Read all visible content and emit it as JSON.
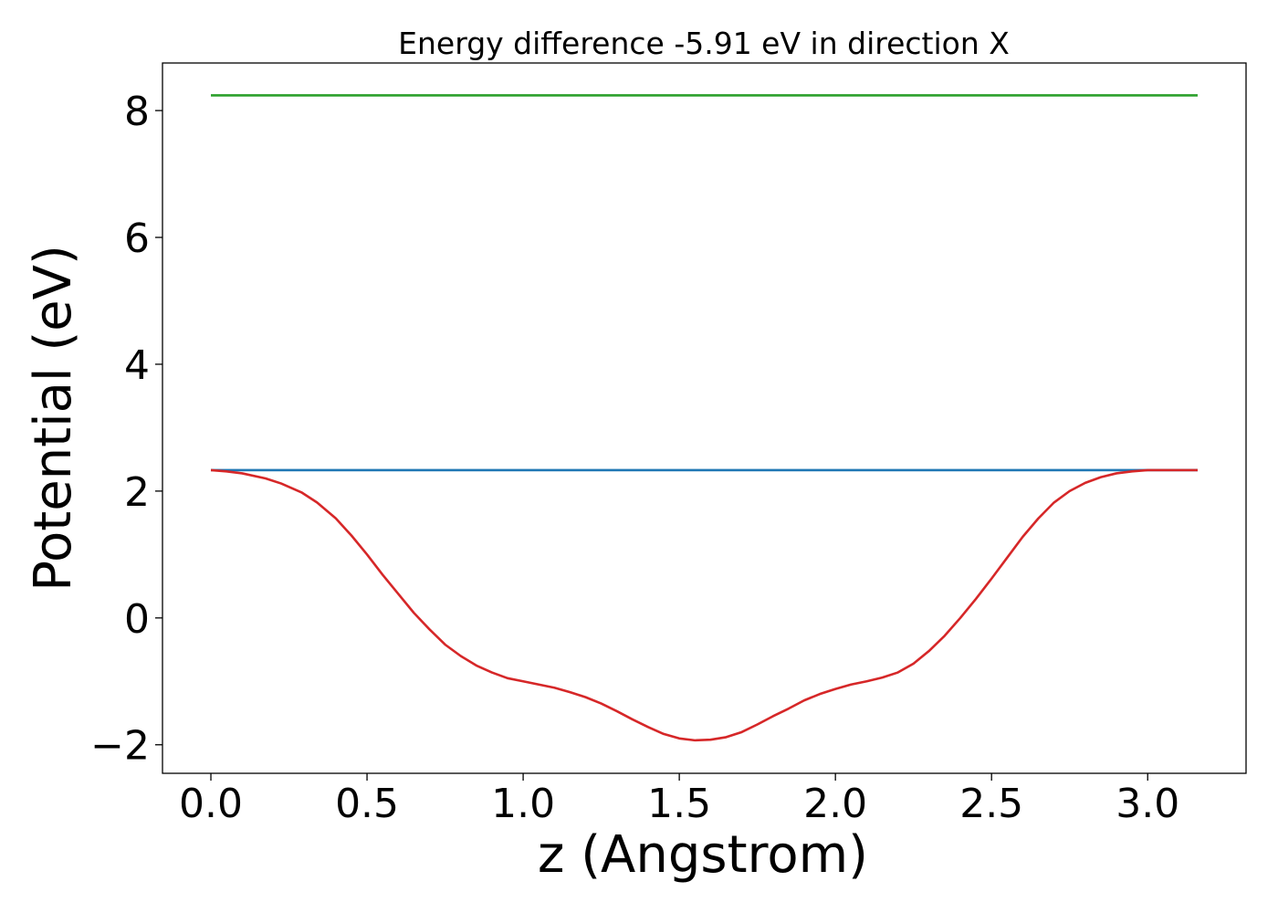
{
  "chart_data": {
    "type": "line",
    "title": "Energy difference -5.91 eV in direction X",
    "xlabel": "z (Angstrom)",
    "ylabel": "Potential (eV)",
    "xlim": [
      -0.155,
      3.315
    ],
    "ylim": [
      -2.45,
      8.75
    ],
    "xticks": [
      0.0,
      0.5,
      1.0,
      1.5,
      2.0,
      2.5,
      3.0
    ],
    "xtick_labels": [
      "0.0",
      "0.5",
      "1.0",
      "1.5",
      "2.0",
      "2.5",
      "3.0"
    ],
    "yticks": [
      -2,
      0,
      2,
      4,
      6,
      8
    ],
    "ytick_labels": [
      "−2",
      "0",
      "2",
      "4",
      "6",
      "8"
    ],
    "grid": false,
    "legend": "none",
    "series": [
      {
        "color": "#2ca02c",
        "x": [
          0.0,
          3.16
        ],
        "y": [
          8.24,
          8.24
        ]
      },
      {
        "color": "#1f77b4",
        "x": [
          0.0,
          3.16
        ],
        "y": [
          2.33,
          2.33
        ]
      },
      {
        "color": "#d62728",
        "x": [
          0.0,
          0.05,
          0.1,
          0.175,
          0.225,
          0.29,
          0.34,
          0.4,
          0.45,
          0.5,
          0.55,
          0.6,
          0.65,
          0.7,
          0.75,
          0.8,
          0.85,
          0.9,
          0.95,
          1.0,
          1.05,
          1.1,
          1.15,
          1.2,
          1.25,
          1.3,
          1.35,
          1.4,
          1.45,
          1.5,
          1.55,
          1.6,
          1.65,
          1.7,
          1.75,
          1.8,
          1.85,
          1.9,
          1.95,
          2.0,
          2.05,
          2.1,
          2.15,
          2.2,
          2.25,
          2.3,
          2.35,
          2.4,
          2.45,
          2.5,
          2.55,
          2.6,
          2.65,
          2.7,
          2.75,
          2.8,
          2.85,
          2.9,
          2.95,
          3.0,
          3.05,
          3.1,
          3.16
        ],
        "y": [
          2.33,
          2.31,
          2.28,
          2.2,
          2.12,
          1.98,
          1.82,
          1.57,
          1.3,
          1.0,
          0.68,
          0.38,
          0.08,
          -0.18,
          -0.42,
          -0.6,
          -0.75,
          -0.86,
          -0.95,
          -1.0,
          -1.05,
          -1.1,
          -1.17,
          -1.25,
          -1.35,
          -1.47,
          -1.6,
          -1.72,
          -1.83,
          -1.9,
          -1.93,
          -1.92,
          -1.88,
          -1.8,
          -1.68,
          -1.55,
          -1.43,
          -1.3,
          -1.2,
          -1.12,
          -1.05,
          -1.0,
          -0.94,
          -0.86,
          -0.72,
          -0.52,
          -0.28,
          0.0,
          0.3,
          0.62,
          0.95,
          1.28,
          1.57,
          1.82,
          2.0,
          2.13,
          2.22,
          2.28,
          2.31,
          2.33,
          2.33,
          2.33,
          2.33
        ]
      }
    ]
  }
}
